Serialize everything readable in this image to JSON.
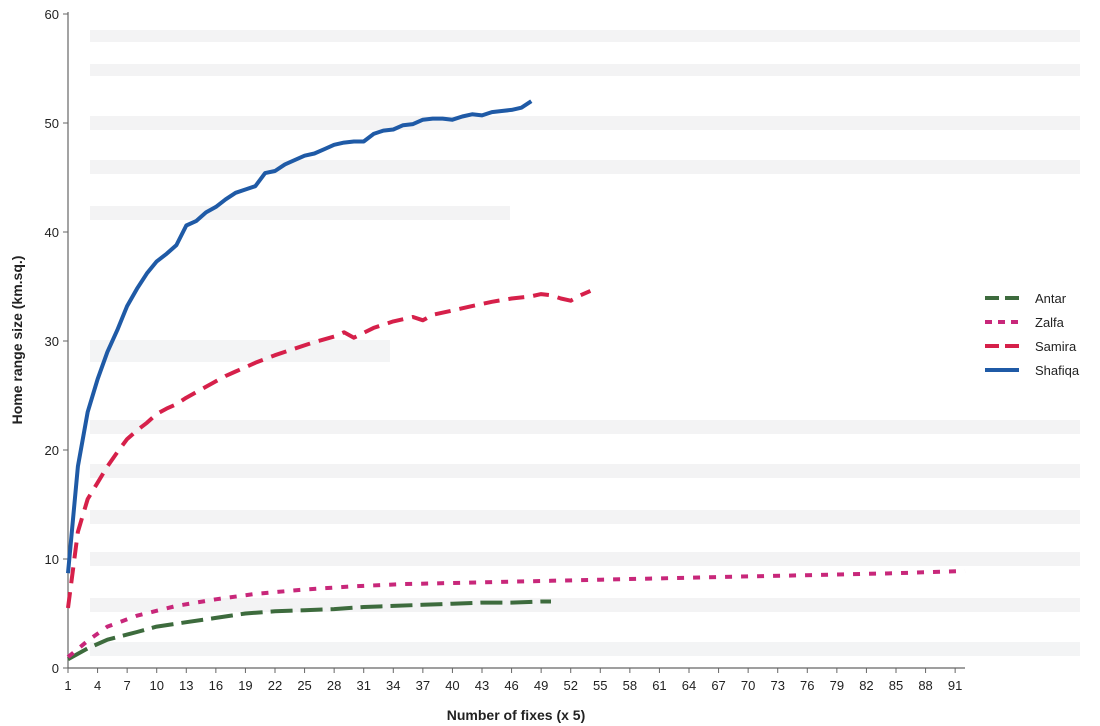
{
  "chart_data": {
    "type": "line",
    "title": "",
    "xlabel": "Number of fixes (x 5)",
    "ylabel": "Home range size (km.sq.)",
    "ylim": [
      0,
      60
    ],
    "yticks": [
      0,
      10,
      20,
      30,
      40,
      50,
      60
    ],
    "xlim": [
      1,
      92
    ],
    "xticks": [
      1,
      4,
      7,
      10,
      13,
      16,
      19,
      22,
      25,
      28,
      31,
      34,
      37,
      40,
      43,
      46,
      49,
      52,
      55,
      58,
      61,
      64,
      67,
      70,
      73,
      76,
      79,
      82,
      85,
      88,
      91
    ],
    "grid": false,
    "legend": "right",
    "series": [
      {
        "name": "Antar",
        "color": "#3d6b3d",
        "dash": "long-dash",
        "x": [
          1,
          3,
          5,
          8,
          10,
          13,
          16,
          19,
          22,
          25,
          28,
          31,
          34,
          37,
          40,
          43,
          46,
          49,
          50
        ],
        "y": [
          0.8,
          1.8,
          2.6,
          3.3,
          3.8,
          4.2,
          4.6,
          5.0,
          5.2,
          5.3,
          5.4,
          5.6,
          5.7,
          5.8,
          5.9,
          6.0,
          6.0,
          6.1,
          6.1
        ]
      },
      {
        "name": "Zalfa",
        "color": "#c8277a",
        "dash": "short-dash",
        "x": [
          1,
          3,
          5,
          8,
          12,
          16,
          20,
          25,
          30,
          35,
          40,
          45,
          50,
          55,
          60,
          65,
          70,
          75,
          80,
          85,
          92
        ],
        "y": [
          1.0,
          2.5,
          3.8,
          4.8,
          5.7,
          6.3,
          6.8,
          7.2,
          7.5,
          7.7,
          7.8,
          7.9,
          8.0,
          8.1,
          8.2,
          8.3,
          8.4,
          8.5,
          8.6,
          8.7,
          8.9
        ]
      },
      {
        "name": "Samira",
        "color": "#d6204a",
        "dash": "dash",
        "x": [
          1,
          2,
          3,
          4,
          5,
          6,
          7,
          8,
          9,
          10,
          11,
          12,
          13,
          14,
          15,
          16,
          17,
          18,
          19,
          20,
          22,
          24,
          26,
          28,
          29,
          30,
          32,
          34,
          36,
          37,
          38,
          40,
          42,
          44,
          46,
          48,
          49,
          50,
          51,
          52,
          53,
          54
        ],
        "y": [
          5.5,
          12.5,
          15.5,
          17.0,
          18.5,
          19.8,
          21.0,
          21.8,
          22.5,
          23.3,
          23.8,
          24.2,
          24.8,
          25.3,
          25.8,
          26.3,
          26.8,
          27.2,
          27.6,
          28.0,
          28.7,
          29.3,
          29.9,
          30.4,
          30.8,
          30.3,
          31.2,
          31.8,
          32.2,
          31.9,
          32.4,
          32.8,
          33.2,
          33.6,
          33.9,
          34.1,
          34.3,
          34.2,
          33.9,
          33.7,
          34.2,
          34.6
        ]
      },
      {
        "name": "Shafiqa",
        "color": "#1f5aa6",
        "dash": "solid",
        "x": [
          1,
          2,
          3,
          4,
          5,
          6,
          7,
          8,
          9,
          10,
          11,
          12,
          13,
          14,
          15,
          16,
          17,
          18,
          19,
          20,
          21,
          22,
          23,
          24,
          25,
          26,
          27,
          28,
          29,
          30,
          31,
          32,
          33,
          34,
          35,
          36,
          37,
          38,
          39,
          40,
          41,
          42,
          43,
          44,
          45,
          46,
          47,
          48
        ],
        "y": [
          8.7,
          18.5,
          23.5,
          26.5,
          29.0,
          31.0,
          33.2,
          34.8,
          36.2,
          37.3,
          38.0,
          38.8,
          40.6,
          41.0,
          41.8,
          42.3,
          43.0,
          43.6,
          43.9,
          44.2,
          45.4,
          45.6,
          46.2,
          46.6,
          47.0,
          47.2,
          47.6,
          48.0,
          48.2,
          48.3,
          48.3,
          49.0,
          49.3,
          49.4,
          49.8,
          49.9,
          50.3,
          50.4,
          50.4,
          50.3,
          50.6,
          50.8,
          50.7,
          51.0,
          51.1,
          51.2,
          51.4,
          52.0
        ]
      }
    ]
  }
}
